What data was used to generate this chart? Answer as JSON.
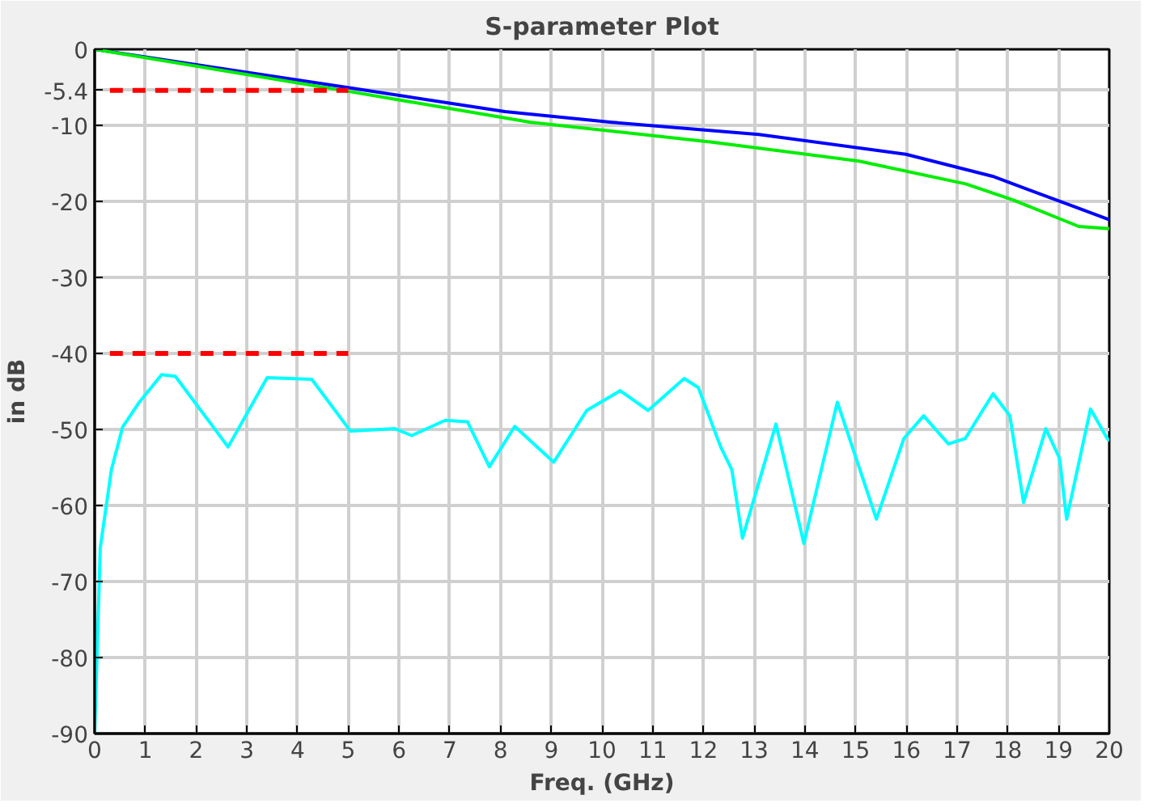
{
  "chart_data": {
    "type": "line",
    "title": "S-parameter Plot",
    "xlabel": "Freq. (GHz)",
    "ylabel": "in dB",
    "xlim": [
      0,
      20
    ],
    "ylim": [
      -90,
      0
    ],
    "xticks": [
      0,
      1,
      2,
      3,
      4,
      5,
      6,
      7,
      8,
      9,
      10,
      11,
      12,
      13,
      14,
      15,
      16,
      17,
      18,
      19,
      20
    ],
    "yticks": [
      -90,
      -80,
      -70,
      -60,
      -50,
      -40,
      -30,
      -20,
      -10,
      -5.4,
      0
    ],
    "grid": true,
    "marker": "none",
    "line_style": "solid",
    "series": [
      {
        "color": "#0000ff",
        "x": [
          0,
          5.07,
          8.09,
          10.2,
          13.09,
          15.99,
          17.7,
          20
        ],
        "values": [
          0,
          -5.1,
          -8.2,
          -9.6,
          -11.2,
          -13.8,
          -16.7,
          -22.4
        ]
      },
      {
        "color": "#00ee00",
        "x": [
          0,
          5.07,
          8.6,
          12.17,
          15.07,
          17.17,
          18.1,
          19.4,
          20
        ],
        "values": [
          0,
          -5.6,
          -9.6,
          -12.2,
          -14.7,
          -17.7,
          -19.8,
          -23.3,
          -23.6
        ]
      },
      {
        "color": "#00ffff",
        "x": [
          0,
          0.11,
          0.33,
          0.55,
          0.88,
          1.32,
          1.59,
          2.63,
          3.4,
          4.28,
          5.04,
          5.92,
          6.25,
          6.91,
          7.35,
          7.78,
          8.28,
          9.05,
          9.7,
          10.36,
          10.91,
          11.62,
          11.9,
          12.34,
          12.56,
          12.77,
          13.43,
          13.98,
          14.64,
          15.41,
          15.95,
          16.34,
          16.83,
          17.16,
          17.71,
          18.04,
          18.31,
          18.75,
          19.02,
          19.16,
          19.63,
          19.96,
          20
        ],
        "values": [
          -90,
          -65.6,
          -55.3,
          -49.7,
          -46.4,
          -42.8,
          -43.0,
          -52.3,
          -43.2,
          -43.4,
          -50.2,
          -49.9,
          -50.8,
          -48.8,
          -49.0,
          -54.9,
          -49.6,
          -54.3,
          -47.5,
          -44.9,
          -47.5,
          -43.3,
          -44.5,
          -52.3,
          -55.3,
          -64.3,
          -49.3,
          -65.0,
          -46.4,
          -61.8,
          -51.2,
          -48.2,
          -51.9,
          -51.2,
          -45.3,
          -48.2,
          -59.6,
          -49.9,
          -53.8,
          -61.8,
          -47.3,
          -51.2,
          -51.5
        ]
      },
      {
        "color": "#ff0000",
        "line_style": "dashed",
        "x": [
          0.3,
          5
        ],
        "values": [
          -5.4,
          -5.4
        ]
      },
      {
        "color": "#ff0000",
        "line_style": "dashed",
        "x": [
          0.3,
          5
        ],
        "values": [
          -40,
          -40
        ]
      }
    ]
  }
}
